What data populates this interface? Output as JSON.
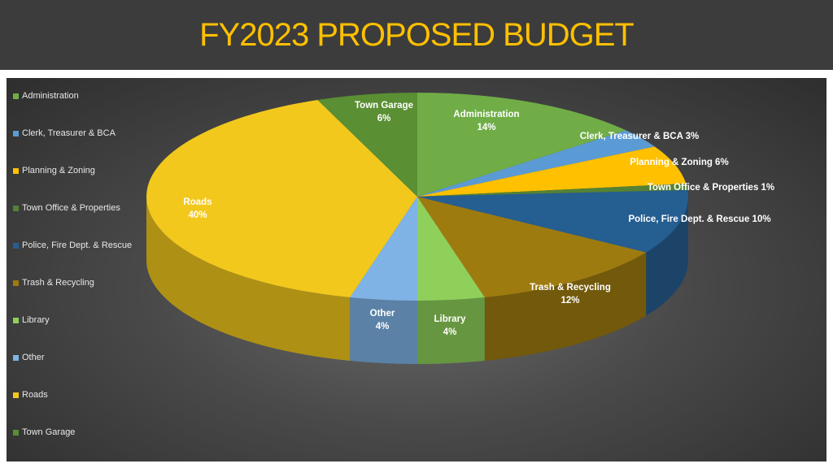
{
  "title": "FY2023 PROPOSED BUDGET",
  "colors": {
    "title_bar": "#3c3c3c",
    "title_text": "#ffc000"
  },
  "chart_data": {
    "type": "pie",
    "title": "",
    "categories": [
      "Administration",
      "Clerk, Treasurer & BCA",
      "Planning & Zoning",
      "Town Office & Properties",
      "Police, Fire Dept. & Rescue",
      "Trash & Recycling",
      "Library",
      "Other",
      "Roads",
      "Town Garage"
    ],
    "values": [
      14,
      3,
      6,
      1,
      10,
      12,
      4,
      4,
      40,
      6
    ],
    "units": "%",
    "slice_labels": [
      {
        "name": "Administration",
        "value": "14%"
      },
      {
        "name": "Clerk, Treasurer & BCA",
        "value": "3%"
      },
      {
        "name": "Planning & Zoning",
        "value": "6%"
      },
      {
        "name": "Town Office & Properties",
        "value": "1%"
      },
      {
        "name": "Police, Fire Dept. & Rescue",
        "value": "10%"
      },
      {
        "name": "Trash & Recycling",
        "value": "12%"
      },
      {
        "name": "Library",
        "value": "4%"
      },
      {
        "name": "Other",
        "value": "4%"
      },
      {
        "name": "Roads",
        "value": "40%"
      },
      {
        "name": "Town Garage",
        "value": "6%"
      }
    ],
    "colors": [
      "#70ad47",
      "#5b9bd5",
      "#ffc000",
      "#548235",
      "#255e91",
      "#9e7b0f",
      "#8fd05a",
      "#7fb3e6",
      "#f2c81d",
      "#5a8f33"
    ],
    "legend_position": "left",
    "three_d": true
  }
}
